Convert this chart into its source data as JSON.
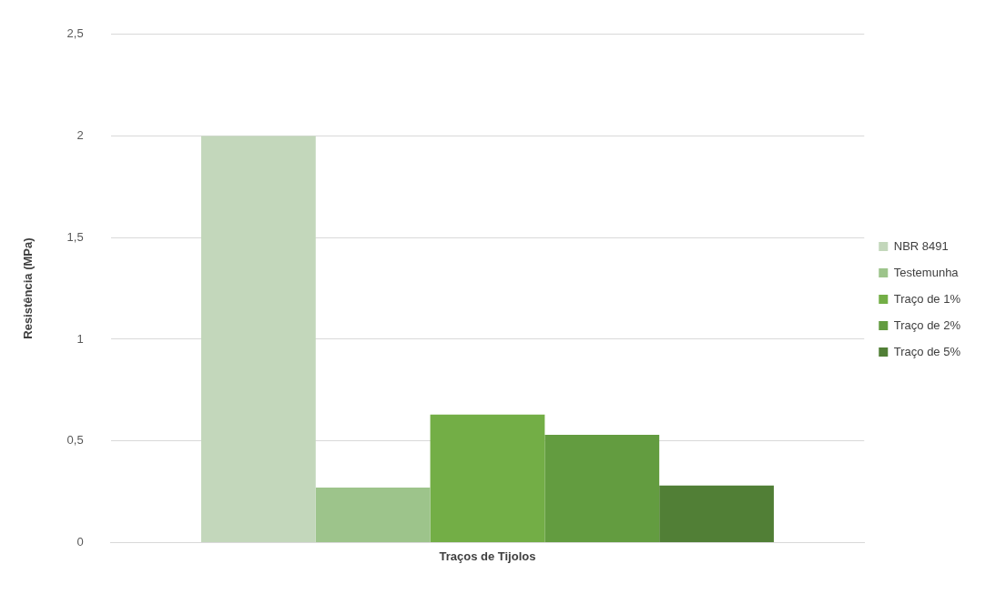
{
  "chart_data": {
    "type": "bar",
    "ylabel": "Resistência (MPa)",
    "categories": [
      "Traços de Tijolos"
    ],
    "series": [
      {
        "name": "NBR 8491",
        "color": "#c3d7bb",
        "values": [
          2
        ]
      },
      {
        "name": "Testemunha",
        "color": "#9dc48b",
        "values": [
          0.27
        ]
      },
      {
        "name": "Traço de 1%",
        "color": "#73ae46",
        "values": [
          0.63
        ]
      },
      {
        "name": "Traço de 2%",
        "color": "#639c40",
        "values": [
          0.53
        ]
      },
      {
        "name": "Traço de 5%",
        "color": "#517f36",
        "values": [
          0.28
        ]
      }
    ],
    "ylim": [
      0,
      2.5
    ],
    "yticks": [
      {
        "value": 0,
        "label": "0"
      },
      {
        "value": 0.5,
        "label": "0,5"
      },
      {
        "value": 1,
        "label": "1"
      },
      {
        "value": 1.5,
        "label": "1,5"
      },
      {
        "value": 2,
        "label": "2"
      },
      {
        "value": 2.5,
        "label": "2,5"
      }
    ],
    "grid": "y",
    "legend": "right"
  }
}
